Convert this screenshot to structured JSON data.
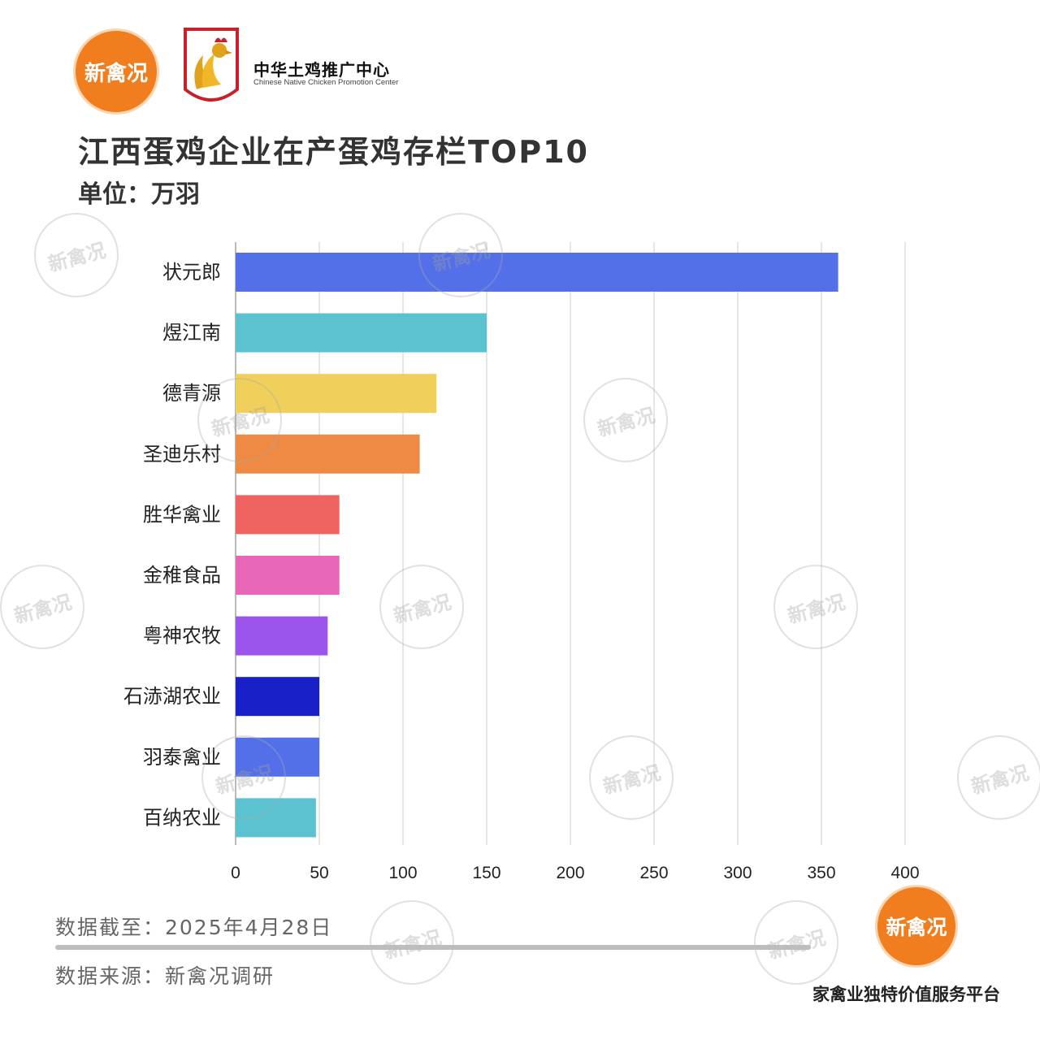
{
  "header": {
    "logo_text": "新禽况",
    "partner_cn": "中华土鸡推广中心",
    "partner_en": "Chinese Native Chicken Promotion Center"
  },
  "watermark_text": "新禽况",
  "colors": {
    "logo_orange": "#f07e1f",
    "grid": "#dddddd"
  },
  "chart_data": {
    "type": "bar",
    "orientation": "horizontal",
    "title": "江西蛋鸡企业在产蛋鸡存栏TOP10",
    "subtitle": "单位：万羽",
    "categories": [
      "状元郎",
      "煜江南",
      "德青源",
      "圣迪乐村",
      "胜华禽业",
      "金稚食品",
      "粤神农牧",
      "石浾湖农业",
      "羽泰禽业",
      "百纳农业"
    ],
    "values": [
      360,
      150,
      120,
      110,
      62,
      62,
      55,
      50,
      50,
      48
    ],
    "bar_colors": [
      "#5470e8",
      "#5bc3cf",
      "#f0d05a",
      "#ef8a44",
      "#ef6461",
      "#e866b8",
      "#9b55ec",
      "#1a20c8",
      "#5470e8",
      "#5bc3cf"
    ],
    "xlim": [
      0,
      400
    ],
    "xticks": [
      0,
      50,
      100,
      150,
      200,
      250,
      300,
      350,
      400
    ],
    "grid": "vertical",
    "legend": "none"
  },
  "footer": {
    "date_note": "数据截至：2025年4月28日",
    "source_note": "数据来源：新禽况调研",
    "slogan": "家禽业独特价值服务平台"
  }
}
